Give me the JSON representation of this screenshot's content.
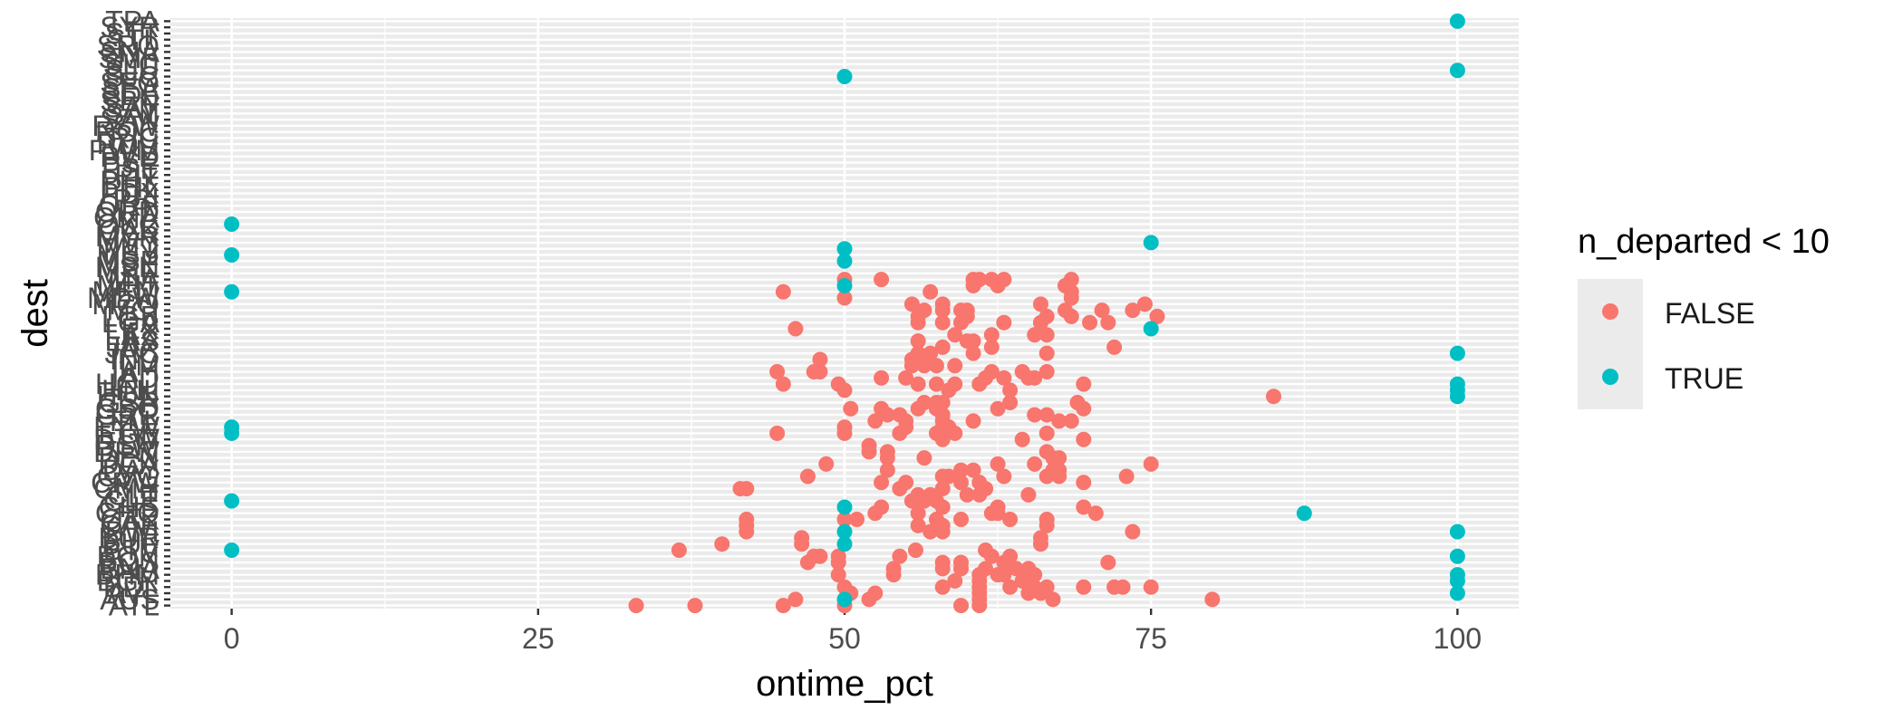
{
  "chart_data": {
    "type": "scatter",
    "title": "",
    "xlabel": "ontime_pct",
    "ylabel": "dest",
    "xlim": [
      -5,
      105
    ],
    "x_ticks": [
      0,
      25,
      50,
      75,
      100
    ],
    "x_tick_labels": [
      "0",
      "25",
      "50",
      "75",
      "100"
    ],
    "categories": [
      "ATL",
      "AUS",
      "AVL",
      "BDL",
      "BGR",
      "BHM",
      "BNA",
      "BOS",
      "BQN",
      "BTV",
      "BUF",
      "BUR",
      "BWI",
      "CAE",
      "CAK",
      "CHO",
      "CHS",
      "CLE",
      "CLT",
      "CMH",
      "CRW",
      "CVG",
      "DAY",
      "DCA",
      "DEN",
      "DFW",
      "DSM",
      "DTW",
      "EGE",
      "EYW",
      "FLL",
      "GRR",
      "GSO",
      "GSP",
      "HDN",
      "HNL",
      "HOU",
      "IAD",
      "IAH",
      "ILM",
      "IND",
      "JAC",
      "JAX",
      "LAS",
      "LAX",
      "LEX",
      "LGA",
      "LGB",
      "MCI",
      "MCO",
      "MDW",
      "MEM",
      "MHT",
      "MIA",
      "MKE",
      "MSN",
      "MSP",
      "MSY",
      "MTJ",
      "MVY",
      "MYR",
      "OAK",
      "OKC",
      "OMA",
      "ORD",
      "ORF",
      "PBI",
      "PDX",
      "PHL",
      "PHX",
      "PIT",
      "PSE",
      "PSP",
      "PVD",
      "PWM",
      "RDU",
      "RIC",
      "ROC",
      "RSW",
      "SAN",
      "SAT",
      "SAV",
      "SBN",
      "SDF",
      "SEA",
      "SFO",
      "SJC",
      "SJU",
      "SLC",
      "SMF",
      "SNA",
      "SRQ",
      "STL",
      "STT",
      "SYR",
      "TPA"
    ],
    "series": [
      {
        "name": "FALSE",
        "color": "#F8766D",
        "points": [
          [
            "ATL",
            33.0
          ],
          [
            "ATL",
            37.8
          ],
          [
            "ATL",
            45.0
          ],
          [
            "ATL",
            50.0
          ],
          [
            "ATL",
            59.5
          ],
          [
            "ATL",
            61.0
          ],
          [
            "AUS",
            46.0
          ],
          [
            "AUS",
            52.0
          ],
          [
            "AUS",
            61.0
          ],
          [
            "AUS",
            67.0
          ],
          [
            "AUS",
            80.0
          ],
          [
            "AVL",
            50.5
          ],
          [
            "AVL",
            52.5
          ],
          [
            "AVL",
            61.0
          ],
          [
            "AVL",
            65.0
          ],
          [
            "AVL",
            66.0
          ],
          [
            "BDL",
            50.0
          ],
          [
            "BDL",
            58.0
          ],
          [
            "BDL",
            61.0
          ],
          [
            "BDL",
            63.5
          ],
          [
            "BDL",
            65.5
          ],
          [
            "BDL",
            66.5
          ],
          [
            "BDL",
            69.5
          ],
          [
            "BDL",
            72.0
          ],
          [
            "BDL",
            72.7
          ],
          [
            "BDL",
            75.0
          ],
          [
            "BGR",
            59.0
          ],
          [
            "BGR",
            61.0
          ],
          [
            "BGR",
            64.5
          ],
          [
            "BHM",
            49.5
          ],
          [
            "BHM",
            54.0
          ],
          [
            "BHM",
            61.0
          ],
          [
            "BHM",
            62.5
          ],
          [
            "BHM",
            63.0
          ],
          [
            "BHM",
            65.5
          ],
          [
            "BNA",
            54.0
          ],
          [
            "BNA",
            58.0
          ],
          [
            "BNA",
            59.5
          ],
          [
            "BNA",
            61.5
          ],
          [
            "BNA",
            64.0
          ],
          [
            "BNA",
            65.0
          ],
          [
            "BOS",
            47.0
          ],
          [
            "BOS",
            49.5
          ],
          [
            "BOS",
            58.0
          ],
          [
            "BOS",
            59.5
          ],
          [
            "BOS",
            63.0
          ],
          [
            "BOS",
            71.5
          ],
          [
            "BQN",
            47.5
          ],
          [
            "BQN",
            48.0
          ],
          [
            "BQN",
            49.5
          ],
          [
            "BQN",
            54.5
          ],
          [
            "BQN",
            62.0
          ],
          [
            "BQN",
            63.5
          ],
          [
            "BTV",
            36.5
          ],
          [
            "BTV",
            55.8
          ],
          [
            "BTV",
            61.5
          ],
          [
            "BUF",
            40.0
          ],
          [
            "BUF",
            46.5
          ],
          [
            "BUF",
            66.0
          ],
          [
            "BUR",
            46.5
          ],
          [
            "BUR",
            66.0
          ],
          [
            "BWI",
            42.0
          ],
          [
            "BWI",
            57.0
          ],
          [
            "BWI",
            58.0
          ],
          [
            "BWI",
            73.5
          ],
          [
            "CAE",
            42.0
          ],
          [
            "CAE",
            56.0
          ],
          [
            "CAE",
            58.0
          ],
          [
            "CAE",
            66.5
          ],
          [
            "CAK",
            42.0
          ],
          [
            "CAK",
            50.0
          ],
          [
            "CAK",
            51.0
          ],
          [
            "CAK",
            57.5
          ],
          [
            "CAK",
            59.5
          ],
          [
            "CAK",
            63.5
          ],
          [
            "CAK",
            66.5
          ],
          [
            "CHO",
            52.5
          ],
          [
            "CHO",
            56.0
          ],
          [
            "CHO",
            62.0
          ],
          [
            "CHO",
            62.5
          ],
          [
            "CHO",
            70.5
          ],
          [
            "CHS",
            53.0
          ],
          [
            "CHS",
            58.0
          ],
          [
            "CHS",
            62.5
          ],
          [
            "CHS",
            69.5
          ],
          [
            "CLE",
            55.5
          ],
          [
            "CLE",
            56.5
          ],
          [
            "CLE",
            57.5
          ],
          [
            "CLT",
            56.0
          ],
          [
            "CLT",
            57.0
          ],
          [
            "CLT",
            60.0
          ],
          [
            "CLT",
            61.0
          ],
          [
            "CLT",
            65.0
          ],
          [
            "CMH",
            41.5
          ],
          [
            "CMH",
            42.0
          ],
          [
            "CMH",
            54.5
          ],
          [
            "CMH",
            58.0
          ],
          [
            "CMH",
            61.5
          ],
          [
            "CRW",
            53.0
          ],
          [
            "CRW",
            55.0
          ],
          [
            "CRW",
            59.5
          ],
          [
            "CRW",
            61.0
          ],
          [
            "CRW",
            69.5
          ],
          [
            "CVG",
            47.0
          ],
          [
            "CVG",
            58.0
          ],
          [
            "CVG",
            58.5
          ],
          [
            "CVG",
            63.0
          ],
          [
            "CVG",
            66.5
          ],
          [
            "CVG",
            67.5
          ],
          [
            "CVG",
            73.0
          ],
          [
            "DAY",
            53.5
          ],
          [
            "DAY",
            59.5
          ],
          [
            "DAY",
            60.5
          ],
          [
            "DAY",
            67.0
          ],
          [
            "DAY",
            67.5
          ],
          [
            "DCA",
            48.5
          ],
          [
            "DCA",
            62.5
          ],
          [
            "DCA",
            65.5
          ],
          [
            "DCA",
            75.0
          ],
          [
            "DEN",
            53.5
          ],
          [
            "DEN",
            56.5
          ],
          [
            "DEN",
            67.0
          ],
          [
            "DEN",
            67.5
          ],
          [
            "DFW",
            52.0
          ],
          [
            "DFW",
            53.5
          ],
          [
            "DFW",
            66.5
          ],
          [
            "DSM",
            52.0
          ],
          [
            "DTW",
            58.0
          ],
          [
            "DTW",
            64.5
          ],
          [
            "DTW",
            69.5
          ],
          [
            "EGE",
            44.5
          ],
          [
            "EGE",
            50.0
          ],
          [
            "EGE",
            54.5
          ],
          [
            "EGE",
            57.5
          ],
          [
            "EGE",
            59.0
          ],
          [
            "EGE",
            66.5
          ],
          [
            "EYW",
            50.0
          ],
          [
            "EYW",
            55.0
          ],
          [
            "EYW",
            58.0
          ],
          [
            "EYW",
            58.5
          ],
          [
            "FLL",
            52.5
          ],
          [
            "FLL",
            55.0
          ],
          [
            "FLL",
            58.0
          ],
          [
            "FLL",
            60.5
          ],
          [
            "FLL",
            67.5
          ],
          [
            "FLL",
            68.5
          ],
          [
            "GRR",
            53.5
          ],
          [
            "GRR",
            54.5
          ],
          [
            "GRR",
            58.0
          ],
          [
            "GRR",
            65.5
          ],
          [
            "GRR",
            66.5
          ],
          [
            "GSO",
            50.5
          ],
          [
            "GSO",
            53.0
          ],
          [
            "GSO",
            56.0
          ],
          [
            "GSO",
            57.5
          ],
          [
            "GSO",
            62.5
          ],
          [
            "GSO",
            69.5
          ],
          [
            "GSP",
            56.5
          ],
          [
            "GSP",
            57.5
          ],
          [
            "GSP",
            58.0
          ],
          [
            "GSP",
            63.5
          ],
          [
            "GSP",
            69.0
          ],
          [
            "HDN",
            85.0
          ],
          [
            "HNL",
            50.0
          ],
          [
            "HNL",
            58.5
          ],
          [
            "HNL",
            63.5
          ],
          [
            "HOU",
            45.0
          ],
          [
            "HOU",
            49.5
          ],
          [
            "HOU",
            56.0
          ],
          [
            "HOU",
            57.5
          ],
          [
            "HOU",
            59.0
          ],
          [
            "HOU",
            61.0
          ],
          [
            "HOU",
            69.5
          ],
          [
            "IAD",
            53.0
          ],
          [
            "IAD",
            55.0
          ],
          [
            "IAD",
            61.5
          ],
          [
            "IAD",
            63.0
          ],
          [
            "IAD",
            65.0
          ],
          [
            "IAD",
            65.5
          ],
          [
            "IAH",
            44.5
          ],
          [
            "IAH",
            47.5
          ],
          [
            "IAH",
            48.0
          ],
          [
            "IAH",
            62.0
          ],
          [
            "IAH",
            64.5
          ],
          [
            "IAH",
            66.5
          ],
          [
            "ILM",
            55.5
          ],
          [
            "ILM",
            56.5
          ],
          [
            "ILM",
            57.5
          ],
          [
            "ILM",
            59.0
          ],
          [
            "IND",
            48.0
          ],
          [
            "IND",
            55.5
          ],
          [
            "JAC",
            56.0
          ],
          [
            "JAC",
            57.0
          ],
          [
            "JAC",
            60.5
          ],
          [
            "JAC",
            66.5
          ],
          [
            "JAX",
            58.0
          ],
          [
            "JAX",
            62.0
          ],
          [
            "JAX",
            72.0
          ],
          [
            "LAS",
            56.0
          ],
          [
            "LAS",
            60.0
          ],
          [
            "LAS",
            60.5
          ],
          [
            "LAX",
            59.0
          ],
          [
            "LAX",
            62.0
          ],
          [
            "LAX",
            65.5
          ],
          [
            "LAX",
            66.5
          ],
          [
            "LEX",
            46.0
          ],
          [
            "LGA",
            56.0
          ],
          [
            "LGA",
            58.0
          ],
          [
            "LGA",
            59.5
          ],
          [
            "LGA",
            63.0
          ],
          [
            "LGA",
            66.0
          ],
          [
            "LGA",
            70.0
          ],
          [
            "LGA",
            71.5
          ],
          [
            "LGB",
            56.0
          ],
          [
            "LGB",
            60.0
          ],
          [
            "LGB",
            66.5
          ],
          [
            "LGB",
            68.5
          ],
          [
            "LGB",
            75.5
          ],
          [
            "MCI",
            56.5
          ],
          [
            "MCI",
            58.0
          ],
          [
            "MCI",
            59.5
          ],
          [
            "MCI",
            60.0
          ],
          [
            "MCI",
            68.0
          ],
          [
            "MCI",
            71.0
          ],
          [
            "MCI",
            73.5
          ],
          [
            "MCO",
            55.5
          ],
          [
            "MCO",
            58.0
          ],
          [
            "MCO",
            66.0
          ],
          [
            "MCO",
            74.5
          ],
          [
            "MDW",
            50.0
          ],
          [
            "MDW",
            68.5
          ],
          [
            "MEM",
            45.0
          ],
          [
            "MEM",
            57.0
          ],
          [
            "MEM",
            68.5
          ],
          [
            "MHT",
            60.5
          ],
          [
            "MHT",
            62.5
          ],
          [
            "MHT",
            68.0
          ],
          [
            "MIA",
            50.0
          ],
          [
            "MIA",
            53.0
          ],
          [
            "MIA",
            60.5
          ],
          [
            "MIA",
            61.0
          ],
          [
            "MIA",
            62.0
          ],
          [
            "MIA",
            63.0
          ],
          [
            "MIA",
            68.5
          ]
        ]
      },
      {
        "name": "TRUE",
        "color": "#00BFC4",
        "points": [
          [
            "AUS",
            50.0
          ],
          [
            "AVL",
            100.0
          ],
          [
            "BGR",
            100.0
          ],
          [
            "BHM",
            100.0
          ],
          [
            "BQN",
            100.0
          ],
          [
            "BTV",
            0.0
          ],
          [
            "BUF",
            50.0
          ],
          [
            "BWI",
            50.0
          ],
          [
            "BWI",
            100.0
          ],
          [
            "CHO",
            87.5
          ],
          [
            "CHS",
            50.0
          ],
          [
            "CLE",
            0.0
          ],
          [
            "EGE",
            0.0
          ],
          [
            "EYW",
            0.0
          ],
          [
            "HDN",
            100.0
          ],
          [
            "HNL",
            100.0
          ],
          [
            "HOU",
            100.0
          ],
          [
            "JAC",
            100.0
          ],
          [
            "LEX",
            75.0
          ],
          [
            "MEM",
            0.0
          ],
          [
            "MHT",
            50.0
          ],
          [
            "MSP",
            50.0
          ],
          [
            "MSY",
            0.0
          ],
          [
            "MTJ",
            50.0
          ],
          [
            "MVY",
            75.0
          ],
          [
            "OKC",
            0.0
          ],
          [
            "SJC",
            50.0
          ],
          [
            "SJU",
            100.0
          ],
          [
            "TPA",
            100.0
          ]
        ]
      }
    ],
    "legend": {
      "title": "n_departed < 10",
      "position": "right",
      "entries": [
        {
          "label": "FALSE",
          "color": "#F8766D"
        },
        {
          "label": "TRUE",
          "color": "#00BFC4"
        }
      ]
    },
    "grid": true,
    "panel_background": "#EBEBEB",
    "gridline_color": "#FFFFFF"
  }
}
